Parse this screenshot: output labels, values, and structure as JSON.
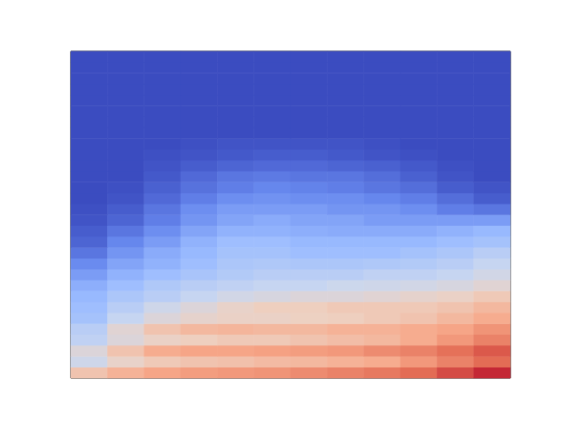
{
  "chart_data": {
    "type": "heatmap",
    "tick_labels": false,
    "grid": false,
    "value_range": [
      0,
      1
    ],
    "values": [
      [
        0.62,
        0.68,
        0.72,
        0.74,
        0.75,
        0.76,
        0.78,
        0.8,
        0.82,
        0.85,
        0.9,
        0.95
      ],
      [
        0.45,
        0.55,
        0.6,
        0.62,
        0.63,
        0.65,
        0.66,
        0.68,
        0.7,
        0.75,
        0.8,
        0.85
      ],
      [
        0.5,
        0.62,
        0.7,
        0.72,
        0.72,
        0.73,
        0.74,
        0.75,
        0.78,
        0.8,
        0.84,
        0.88
      ],
      [
        0.4,
        0.5,
        0.56,
        0.58,
        0.6,
        0.6,
        0.62,
        0.64,
        0.66,
        0.7,
        0.75,
        0.8
      ],
      [
        0.38,
        0.52,
        0.62,
        0.66,
        0.67,
        0.66,
        0.66,
        0.68,
        0.68,
        0.7,
        0.72,
        0.76
      ],
      [
        0.32,
        0.42,
        0.5,
        0.54,
        0.56,
        0.56,
        0.57,
        0.58,
        0.6,
        0.62,
        0.66,
        0.7
      ],
      [
        0.3,
        0.38,
        0.45,
        0.5,
        0.55,
        0.58,
        0.58,
        0.6,
        0.6,
        0.6,
        0.62,
        0.66
      ],
      [
        0.28,
        0.34,
        0.38,
        0.42,
        0.46,
        0.48,
        0.5,
        0.5,
        0.52,
        0.54,
        0.56,
        0.6
      ],
      [
        0.25,
        0.3,
        0.35,
        0.38,
        0.4,
        0.42,
        0.42,
        0.44,
        0.45,
        0.46,
        0.48,
        0.52
      ],
      [
        0.2,
        0.26,
        0.3,
        0.33,
        0.36,
        0.38,
        0.38,
        0.38,
        0.4,
        0.4,
        0.42,
        0.46
      ],
      [
        0.15,
        0.22,
        0.26,
        0.3,
        0.34,
        0.35,
        0.34,
        0.34,
        0.35,
        0.36,
        0.38,
        0.42
      ],
      [
        0.1,
        0.18,
        0.24,
        0.28,
        0.32,
        0.32,
        0.3,
        0.3,
        0.3,
        0.32,
        0.34,
        0.38
      ],
      [
        0.06,
        0.14,
        0.2,
        0.26,
        0.3,
        0.3,
        0.28,
        0.28,
        0.28,
        0.28,
        0.3,
        0.32
      ],
      [
        0.04,
        0.1,
        0.16,
        0.22,
        0.26,
        0.26,
        0.25,
        0.24,
        0.24,
        0.24,
        0.26,
        0.28
      ],
      [
        0.02,
        0.06,
        0.12,
        0.18,
        0.22,
        0.24,
        0.22,
        0.22,
        0.2,
        0.2,
        0.2,
        0.2
      ],
      [
        0.01,
        0.04,
        0.1,
        0.16,
        0.2,
        0.2,
        0.2,
        0.18,
        0.18,
        0.16,
        0.12,
        0.1
      ],
      [
        0,
        0.02,
        0.07,
        0.12,
        0.16,
        0.17,
        0.16,
        0.16,
        0.14,
        0.12,
        0.08,
        0.04
      ],
      [
        0,
        0.01,
        0.05,
        0.09,
        0.12,
        0.14,
        0.13,
        0.12,
        0.1,
        0.08,
        0.04,
        0.02
      ],
      [
        0,
        0,
        0.03,
        0.07,
        0.1,
        0.11,
        0.1,
        0.1,
        0.08,
        0.05,
        0.02,
        0
      ],
      [
        0,
        0,
        0.02,
        0.04,
        0.06,
        0.07,
        0.07,
        0.06,
        0.05,
        0.03,
        0.01,
        0
      ],
      [
        0,
        0,
        0.01,
        0.02,
        0.03,
        0.04,
        0.04,
        0.03,
        0.02,
        0.01,
        0,
        0
      ],
      [
        0,
        0,
        0,
        0.01,
        0.02,
        0.02,
        0.02,
        0.02,
        0.01,
        0,
        0,
        0
      ],
      [
        0,
        0,
        0,
        0,
        0,
        0,
        0,
        0,
        0,
        0,
        0,
        0
      ],
      [
        0,
        0,
        0,
        0,
        0,
        0,
        0,
        0,
        0,
        0,
        0,
        0
      ],
      [
        0,
        0,
        0,
        0,
        0,
        0,
        0,
        0,
        0,
        0,
        0,
        0
      ],
      [
        0,
        0,
        0,
        0,
        0,
        0,
        0,
        0,
        0,
        0,
        0,
        0
      ],
      [
        0,
        0,
        0,
        0,
        0,
        0,
        0,
        0,
        0,
        0,
        0,
        0
      ],
      [
        0,
        0,
        0,
        0,
        0,
        0,
        0,
        0,
        0,
        0,
        0,
        0
      ],
      [
        0,
        0,
        0,
        0,
        0,
        0,
        0,
        0,
        0,
        0,
        0,
        0
      ],
      [
        0,
        0,
        0,
        0,
        0,
        0,
        0,
        0,
        0,
        0,
        0,
        0
      ]
    ]
  }
}
